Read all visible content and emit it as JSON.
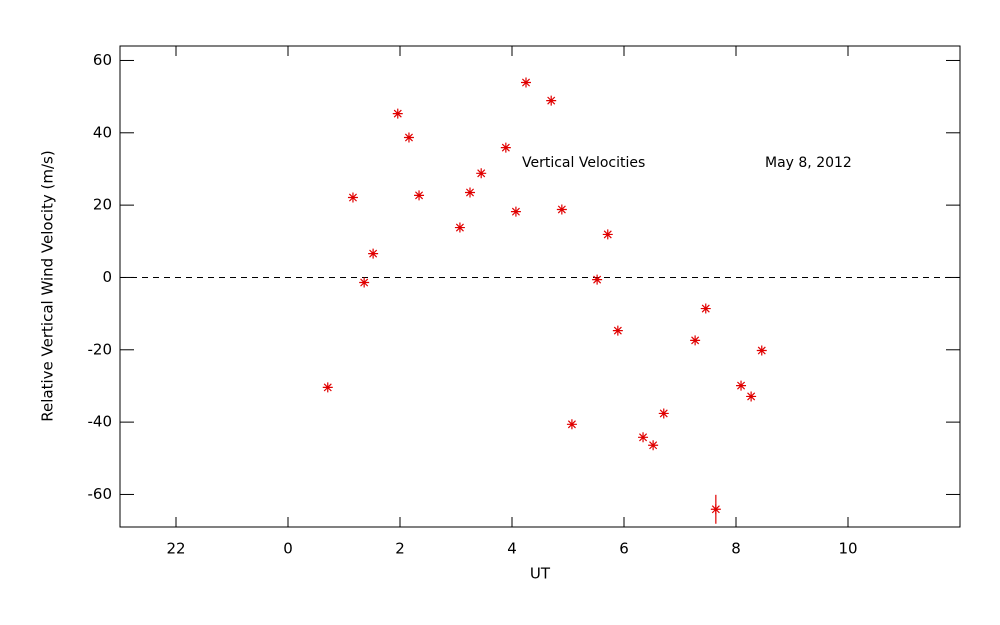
{
  "chart_data": {
    "type": "scatter",
    "annotations": [
      "Vertical Velocities",
      "May 8, 2012"
    ],
    "xlabel": "UT",
    "ylabel": "Relative Vertical Wind Velocity (m/s)",
    "xlim": [
      -3,
      12
    ],
    "ylim": [
      -69,
      64
    ],
    "xticks": [
      {
        "value": -2,
        "label": "22"
      },
      0,
      2,
      4,
      6,
      8,
      10
    ],
    "yticks": [
      -60,
      -40,
      -20,
      0,
      20,
      40,
      60
    ],
    "hline": 0,
    "color": "#e00000",
    "x": [
      0.71,
      1.16,
      1.36,
      1.52,
      1.96,
      2.16,
      2.34,
      3.07,
      3.25,
      3.45,
      3.89,
      4.07,
      4.25,
      4.7,
      4.89,
      5.07,
      5.52,
      5.71,
      5.89,
      6.34,
      6.52,
      6.71,
      7.27,
      7.46,
      7.64,
      8.09,
      8.27,
      8.46
    ],
    "values": [
      -30.4,
      22.1,
      -1.4,
      6.6,
      45.3,
      38.7,
      22.7,
      13.8,
      23.5,
      28.8,
      35.9,
      18.2,
      53.9,
      48.9,
      18.8,
      -40.6,
      -0.6,
      11.9,
      -14.7,
      -44.2,
      -46.4,
      -37.6,
      -17.4,
      -8.6,
      -64.1,
      -29.9,
      -32.9,
      -20.2
    ],
    "errors": [
      null,
      null,
      null,
      null,
      null,
      null,
      null,
      null,
      null,
      null,
      null,
      null,
      null,
      null,
      null,
      null,
      null,
      null,
      null,
      null,
      null,
      null,
      null,
      null,
      4,
      null,
      null,
      null
    ]
  }
}
